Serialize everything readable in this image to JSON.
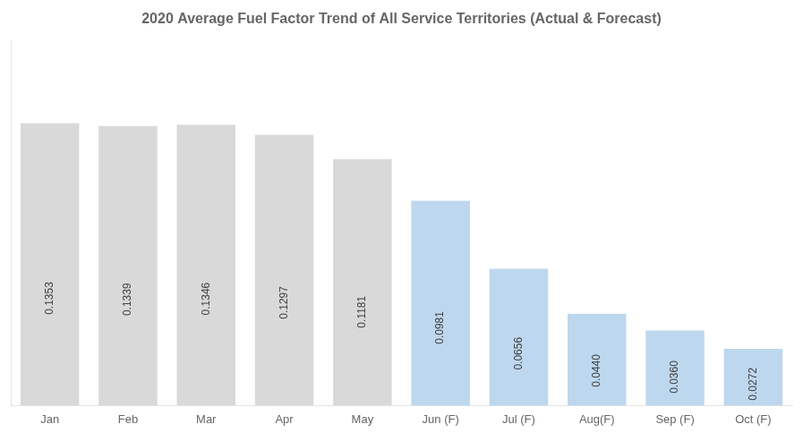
{
  "chart_data": {
    "type": "bar",
    "title": "2020 Average Fuel Factor Trend of All Service Territories (Actual & Forecast)",
    "categories": [
      "Jan",
      "Feb",
      "Mar",
      "Apr",
      "May",
      "Jun (F)",
      "Jul (F)",
      "Aug(F)",
      "Sep (F)",
      "Oct (F)"
    ],
    "values": [
      0.1353,
      0.1339,
      0.1346,
      0.1297,
      0.1181,
      0.0981,
      0.0656,
      0.044,
      0.036,
      0.0272
    ],
    "value_labels": [
      "0.1353",
      "0.1339",
      "0.1346",
      "0.1297",
      "0.1181",
      "0.0981",
      "0.0656",
      "0.0440",
      "0.0360",
      "0.0272"
    ],
    "colors": [
      "#d9d9d9",
      "#d9d9d9",
      "#d9d9d9",
      "#d9d9d9",
      "#d9d9d9",
      "#bdd7ee",
      "#bdd7ee",
      "#bdd7ee",
      "#bdd7ee",
      "#bdd7ee"
    ],
    "ylim": [
      0,
      0.175
    ],
    "data_labels": true,
    "tick_labels": "x",
    "grid": false
  }
}
